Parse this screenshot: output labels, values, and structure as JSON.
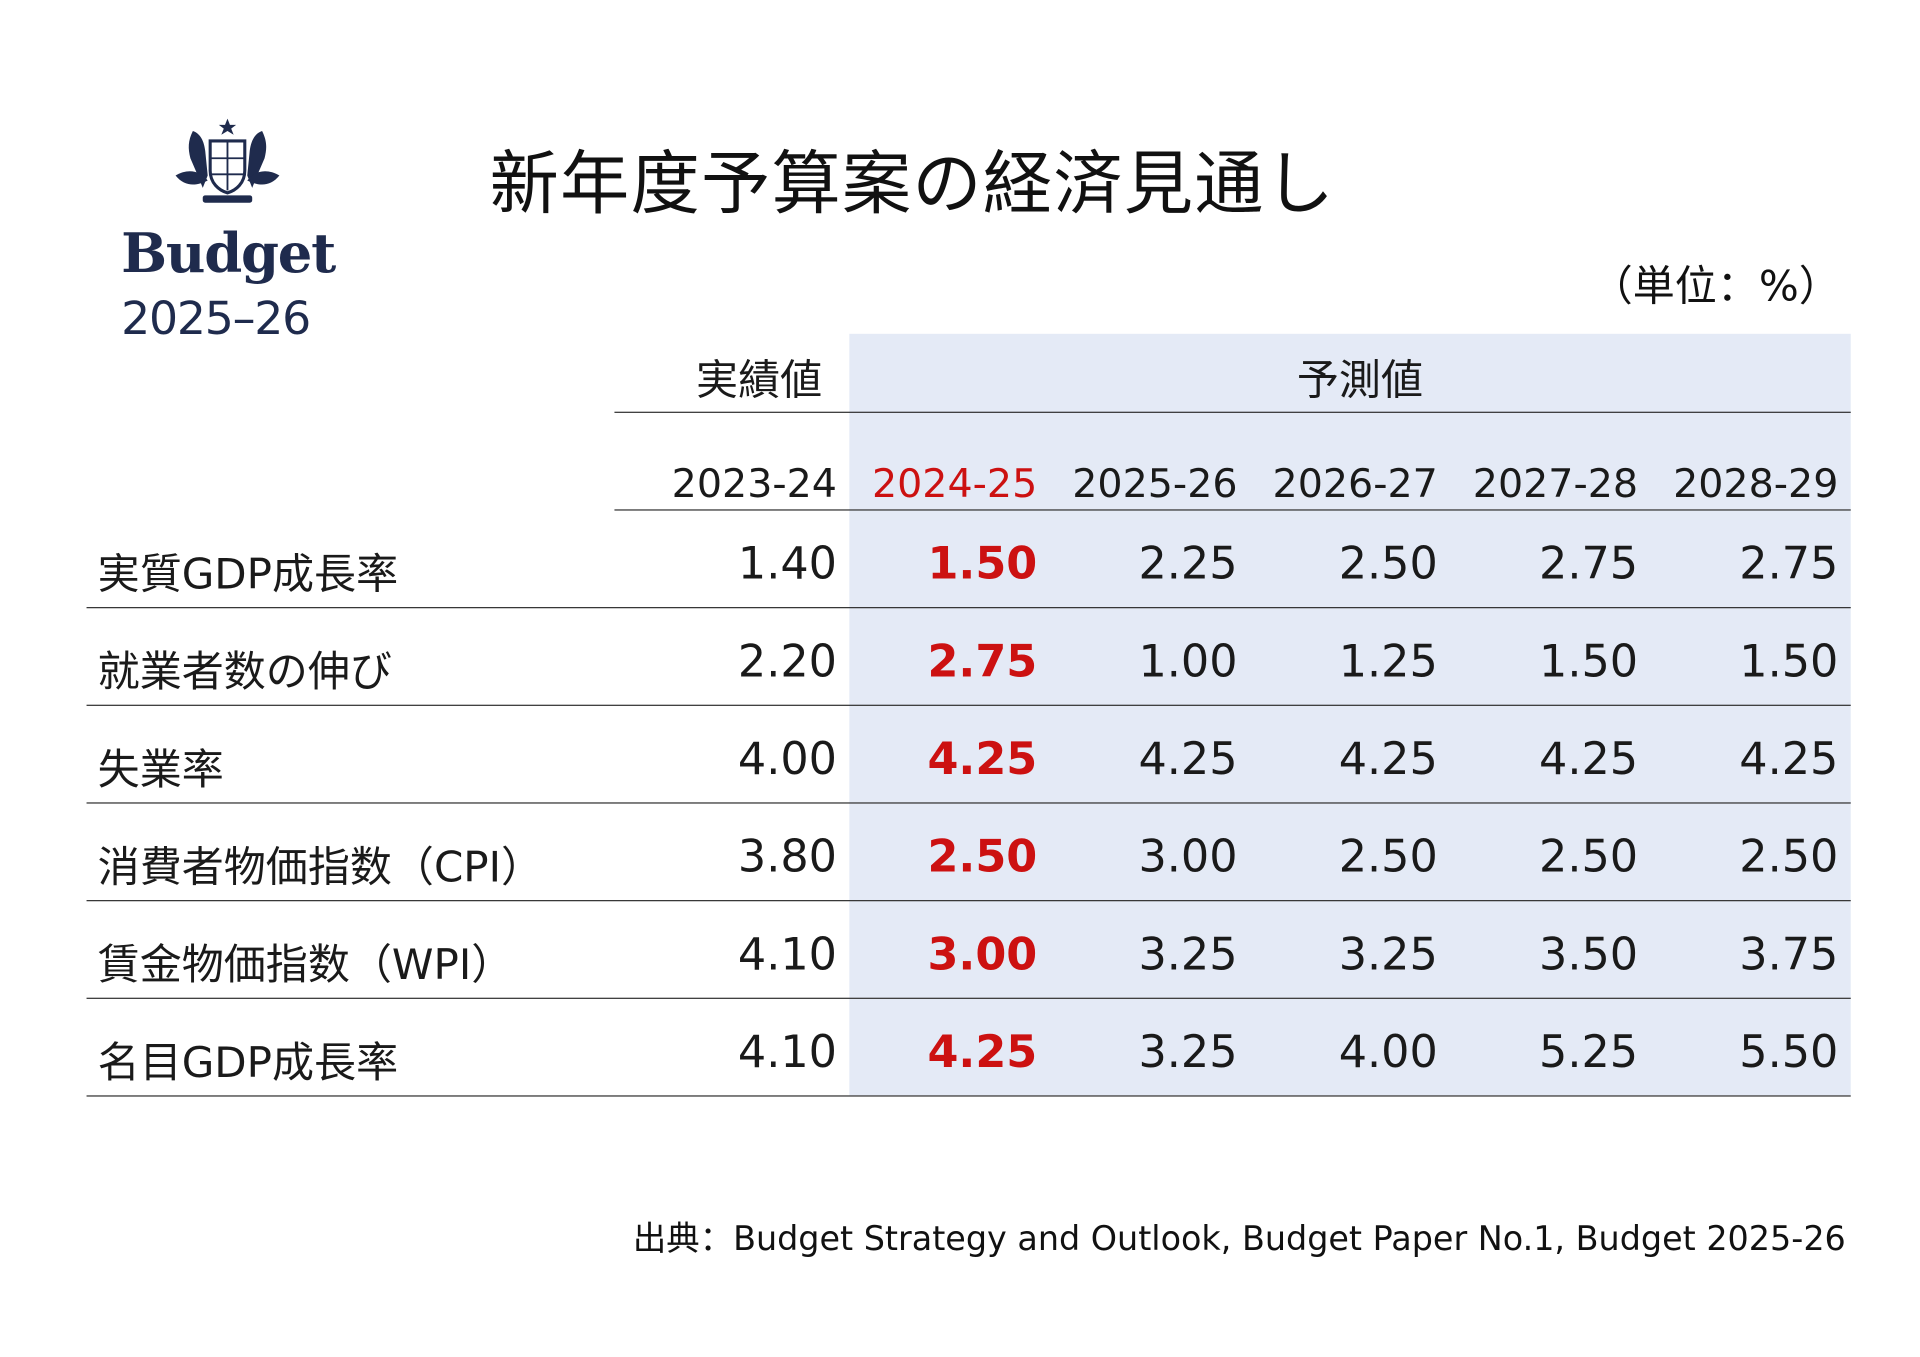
{
  "logo": {
    "word": "Budget",
    "year": "2025–26",
    "crest_icon": "coat-of-arms-icon",
    "brand_color": "#1f2b4d"
  },
  "title": "新年度予算案の経済見通し",
  "unit": "（単位：%）",
  "table": {
    "actual_label": "実績値",
    "forecast_label": "予測値",
    "highlight_color": "#cc1111",
    "forecast_bg": "#e4eaf6",
    "columns": [
      "2023-24",
      "2024-25",
      "2025-26",
      "2026-27",
      "2027-28",
      "2028-29"
    ],
    "rows": [
      {
        "label": "実質GDP成長率",
        "values": [
          "1.40",
          "1.50",
          "2.25",
          "2.50",
          "2.75",
          "2.75"
        ]
      },
      {
        "label": "就業者数の伸び",
        "values": [
          "2.20",
          "2.75",
          "1.00",
          "1.25",
          "1.50",
          "1.50"
        ]
      },
      {
        "label": "失業率",
        "values": [
          "4.00",
          "4.25",
          "4.25",
          "4.25",
          "4.25",
          "4.25"
        ]
      },
      {
        "label": "消費者物価指数（CPI）",
        "values": [
          "3.80",
          "2.50",
          "3.00",
          "2.50",
          "2.50",
          "2.50"
        ]
      },
      {
        "label": "賃金物価指数（WPI）",
        "values": [
          "4.10",
          "3.00",
          "3.25",
          "3.25",
          "3.50",
          "3.75"
        ]
      },
      {
        "label": "名目GDP成長率",
        "values": [
          "4.10",
          "4.25",
          "3.25",
          "4.00",
          "5.25",
          "5.50"
        ]
      }
    ]
  },
  "source": "出典：Budget Strategy and Outlook, Budget Paper No.1, Budget 2025-26"
}
